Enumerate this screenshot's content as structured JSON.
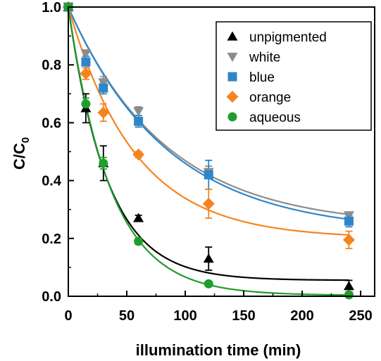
{
  "chart_data": {
    "type": "scatter",
    "xlabel": "illumination time (min)",
    "ylabel": {
      "main": "C/C",
      "sub": "0"
    },
    "xlim": [
      0,
      262
    ],
    "ylim": [
      0,
      1.0
    ],
    "xticks": [
      0,
      50,
      100,
      150,
      200,
      250
    ],
    "xtick_labels": [
      "0",
      "50",
      "100",
      "150",
      "200",
      "250"
    ],
    "yticks": [
      0.0,
      0.2,
      0.4,
      0.6,
      0.8,
      1.0
    ],
    "ytick_labels": [
      "0.0",
      "0.2",
      "0.4",
      "0.6",
      "0.8",
      "1.0"
    ],
    "grid": false,
    "legend_position": "top-right",
    "series": [
      {
        "name": "unpigmented",
        "marker": "triangle-up",
        "color": "#000000",
        "x": [
          0,
          15,
          30,
          60,
          120,
          240
        ],
        "y": [
          1.0,
          0.65,
          0.46,
          0.27,
          0.13,
          0.035
        ],
        "err": [
          0,
          0.05,
          0.06,
          0.01,
          0.04,
          0.02
        ],
        "fit": {
          "c_inf": 0.055,
          "k": 0.03
        }
      },
      {
        "name": "white",
        "marker": "triangle-down",
        "color": "#8c8c8c",
        "x": [
          0,
          15,
          30,
          60,
          120,
          240
        ],
        "y": [
          1.0,
          0.84,
          0.74,
          0.64,
          0.43,
          0.28
        ],
        "err": [
          0,
          0.01,
          0.02,
          0.015,
          0.02,
          0.01
        ],
        "fit": {
          "c_inf": 0.24,
          "k": 0.012
        }
      },
      {
        "name": "blue",
        "marker": "square",
        "color": "#2e86c9",
        "x": [
          0,
          15,
          30,
          60,
          120,
          240
        ],
        "y": [
          1.0,
          0.81,
          0.72,
          0.605,
          0.42,
          0.26
        ],
        "err": [
          0,
          0.02,
          0.02,
          0.02,
          0.05,
          0.02
        ],
        "fit": {
          "c_inf": 0.22,
          "k": 0.0118
        }
      },
      {
        "name": "orange",
        "marker": "diamond",
        "color": "#f5841f",
        "x": [
          0,
          15,
          30,
          60,
          120,
          240
        ],
        "y": [
          1.0,
          0.77,
          0.635,
          0.49,
          0.32,
          0.195
        ],
        "err": [
          0,
          0.02,
          0.03,
          0.01,
          0.05,
          0.03
        ],
        "fit": {
          "c_inf": 0.2,
          "k": 0.0175
        }
      },
      {
        "name": "aqueous",
        "marker": "circle",
        "color": "#1e9e2a",
        "x": [
          0,
          15,
          30,
          60,
          120,
          240
        ],
        "y": [
          1.0,
          0.665,
          0.46,
          0.19,
          0.043,
          0.005
        ],
        "err": [
          0,
          0.02,
          0.02,
          0.01,
          0.005,
          0.005
        ],
        "fit": {
          "c_inf": 0.003,
          "k": 0.0275
        }
      }
    ]
  }
}
